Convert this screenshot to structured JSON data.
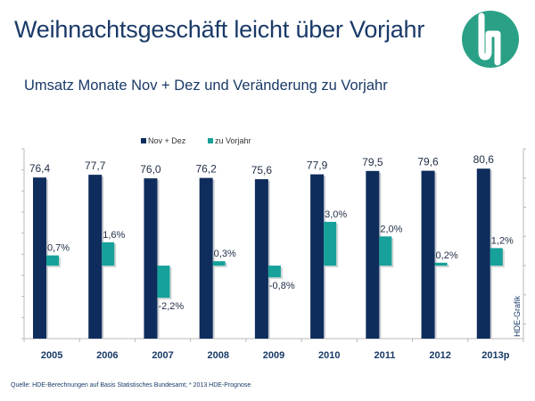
{
  "header": {
    "title": "Weihnachtsgeschäft leicht über Vorjahr",
    "subtitle": "Umsatz Monate Nov + Dez und Veränderung zu Vorjahr",
    "logo": "hde-logo-icon"
  },
  "footer": {
    "source": "Quelle: HDE-Berechnungen  auf Basis Statistisches Bundesamt; * 2013 HDE-Prognose"
  },
  "colors": {
    "navy": "#0f2d5c",
    "teal": "#16a19a",
    "title": "#1a3a68",
    "logo": "#2aa187"
  },
  "chart_data": {
    "type": "bar",
    "title": "Umsatz Monate Nov + Dez und Veränderung zu Vorjahr",
    "xlabel": "",
    "ylabel": "",
    "categories": [
      "2005",
      "2006",
      "2007",
      "2008",
      "2009",
      "2010",
      "2011",
      "2012",
      "2013p"
    ],
    "series": [
      {
        "name": "Nov + Dez",
        "axis": "left",
        "values": [
          76.4,
          77.7,
          76.0,
          76.2,
          75.6,
          77.9,
          79.5,
          79.6,
          80.6
        ],
        "labels": [
          "76,4",
          "77,7",
          "76,0",
          "76,2",
          "75,6",
          "77,9",
          "79,5",
          "79,6",
          "80,6"
        ]
      },
      {
        "name": "zu Vorjahr",
        "axis": "right",
        "values": [
          0.7,
          1.6,
          -2.2,
          0.3,
          -0.8,
          3.0,
          2.0,
          0.2,
          1.2
        ],
        "labels": [
          "0,7%",
          "1,6%",
          "-2,2%",
          "0,3%",
          "-0,8%",
          "3,0%",
          "2,0%",
          "0,2%",
          "1,2%"
        ]
      }
    ],
    "ylim_left": [
      0,
      90
    ],
    "ylim_right": [
      -5,
      8
    ],
    "legend": {
      "position": "top-center",
      "entries": [
        "Nov + Dez",
        "zu Vorjahr"
      ]
    },
    "side_label": "HDE-Grafik",
    "grid": false
  }
}
